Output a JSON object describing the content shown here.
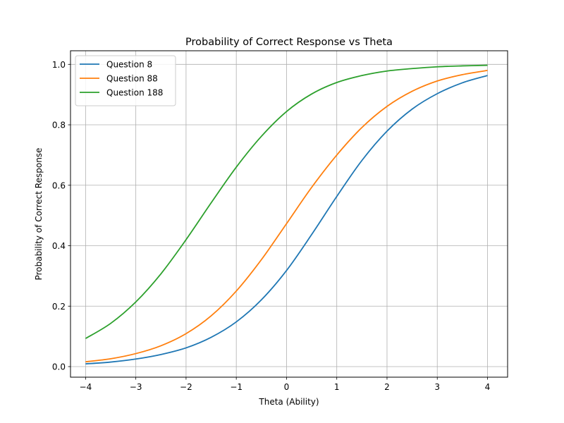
{
  "chart_data": {
    "type": "line",
    "title": "Probability of Correct Response vs Theta",
    "xlabel": "Theta (Ability)",
    "ylabel": "Probability of Correct Response",
    "xlim": [
      -4.3,
      4.4
    ],
    "ylim": [
      -0.035,
      1.045
    ],
    "xticks": [
      -4,
      -3,
      -2,
      -1,
      0,
      1,
      2,
      3,
      4
    ],
    "xtick_labels": [
      "−4",
      "−3",
      "−2",
      "−1",
      "0",
      "1",
      "2",
      "3",
      "4"
    ],
    "yticks": [
      0.0,
      0.2,
      0.4,
      0.6,
      0.8,
      1.0
    ],
    "ytick_labels": [
      "0.0",
      "0.2",
      "0.4",
      "0.6",
      "0.8",
      "1.0"
    ],
    "grid": true,
    "legend_position": "upper-left",
    "x": [
      -4,
      -3.5,
      -3,
      -2.5,
      -2,
      -1.5,
      -1,
      -0.5,
      0,
      0.5,
      1,
      1.5,
      2,
      2.5,
      3,
      3.5,
      4
    ],
    "series": [
      {
        "name": "Question 8",
        "color": "#1f77b4",
        "values": [
          0.009,
          0.015,
          0.025,
          0.04,
          0.062,
          0.097,
          0.148,
          0.221,
          0.318,
          0.437,
          0.563,
          0.682,
          0.779,
          0.852,
          0.903,
          0.939,
          0.963
        ]
      },
      {
        "name": "Question 88",
        "color": "#ff7f0e",
        "values": [
          0.016,
          0.026,
          0.043,
          0.069,
          0.109,
          0.168,
          0.25,
          0.354,
          0.473,
          0.593,
          0.7,
          0.791,
          0.861,
          0.911,
          0.945,
          0.966,
          0.98
        ]
      },
      {
        "name": "Question 188",
        "color": "#2ca02c",
        "values": [
          0.093,
          0.143,
          0.214,
          0.307,
          0.42,
          0.542,
          0.66,
          0.762,
          0.844,
          0.902,
          0.94,
          0.963,
          0.978,
          0.986,
          0.992,
          0.995,
          0.997
        ]
      }
    ]
  }
}
